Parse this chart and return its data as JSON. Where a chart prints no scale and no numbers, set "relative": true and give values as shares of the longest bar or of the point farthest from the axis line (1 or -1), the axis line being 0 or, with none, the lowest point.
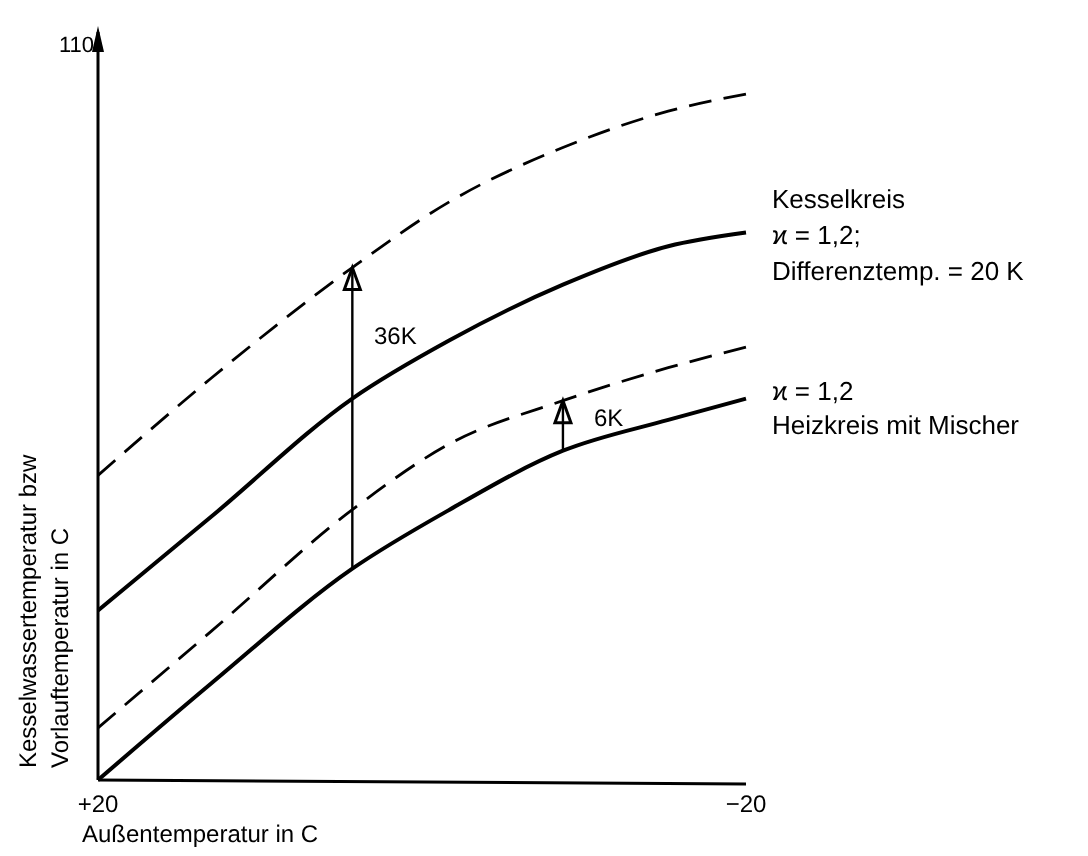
{
  "chart_data": {
    "type": "line",
    "relative": true,
    "xlabel": "Außentemperatur in C",
    "ylabel": "Kesselwassertemperatur bzw\nVorlauftemperatur in C",
    "x": [
      20,
      13,
      4.3,
      -1.7,
      -8.7,
      -15.2,
      -20
    ],
    "xlim": [
      20,
      -20
    ],
    "xticks": [
      {
        "value": 20,
        "label": "+20"
      },
      {
        "value": -20,
        "label": "−20"
      }
    ],
    "series": [
      {
        "color": "#000000",
        "line_style": "dashed",
        "values": [
          0.444,
          0.586,
          0.747,
          0.843,
          0.922,
          0.975,
          1
        ]
      },
      {
        "color": "#000000",
        "line_style": "solid",
        "values": [
          0.247,
          0.384,
          0.556,
          0.641,
          0.722,
          0.778,
          0.798
        ]
      },
      {
        "color": "#000000",
        "line_style": "dashed",
        "values": [
          0.076,
          0.217,
          0.394,
          0.49,
          0.553,
          0.601,
          0.631
        ]
      },
      {
        "color": "#000000",
        "line_style": "solid",
        "values": [
          0,
          0.141,
          0.308,
          0.394,
          0.48,
          0.525,
          0.556
        ]
      }
    ],
    "annotations": [
      "110",
      "36K",
      "6K",
      "Kesselkreis",
      "ϰ = 1,2;",
      "Differenztemp. = 20 K",
      "ϰ = 1,2",
      "Heizkreis mit Mischer"
    ]
  }
}
